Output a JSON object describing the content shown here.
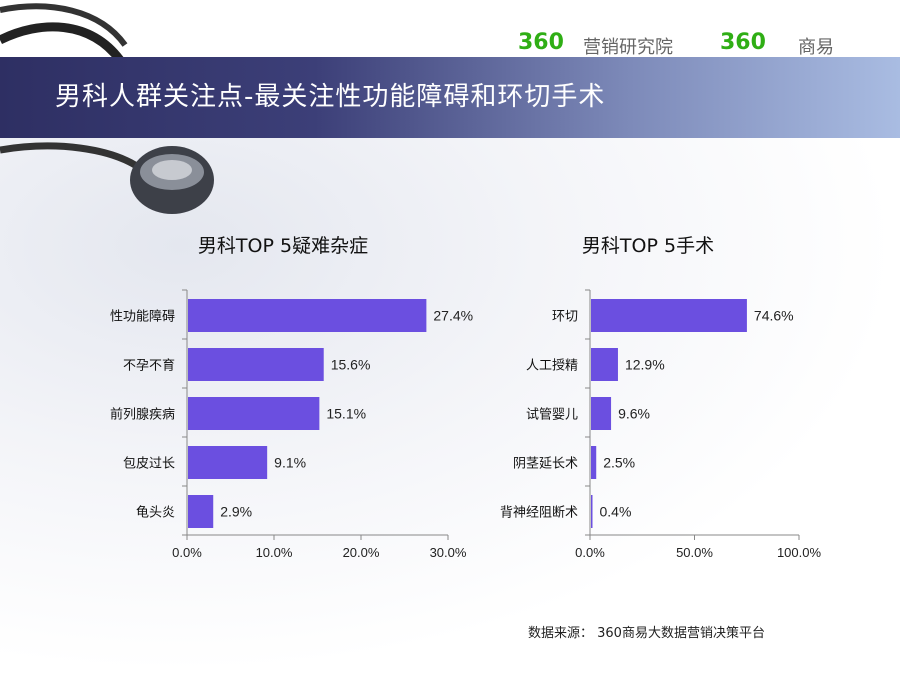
{
  "header": {
    "title": "男科人群关注点-最关注性功能障碍和环切手术",
    "logo1_num": "360",
    "logo1_text": "营销研究院",
    "logo2_num": "360",
    "logo2_text": "商易"
  },
  "footer": {
    "source": "数据来源： 360商易大数据营销决策平台"
  },
  "colors": {
    "bar": "#6b4fe0",
    "logo_green": "#2fae15",
    "band_dark": "#2e2f63",
    "band_light": "#a9bce2"
  },
  "chart_data": [
    {
      "type": "bar",
      "orientation": "horizontal",
      "title": "男科TOP 5疑难杂症",
      "categories": [
        "性功能障碍",
        "不孕不育",
        "前列腺疾病",
        "包皮过长",
        "龟头炎"
      ],
      "values": [
        27.4,
        15.6,
        15.1,
        9.1,
        2.9
      ],
      "labels": [
        "27.4%",
        "15.6%",
        "15.1%",
        "9.1%",
        "2.9%"
      ],
      "xlim": [
        0,
        30
      ],
      "xticks": [
        "0.0%",
        "10.0%",
        "20.0%",
        "30.0%"
      ],
      "grid": false
    },
    {
      "type": "bar",
      "orientation": "horizontal",
      "title": "男科TOP 5手术",
      "categories": [
        "环切",
        "人工授精",
        "试管婴儿",
        "阴茎延长术",
        "背神经阻断术"
      ],
      "values": [
        74.6,
        12.9,
        9.6,
        2.5,
        0.4
      ],
      "labels": [
        "74.6%",
        "12.9%",
        "9.6%",
        "2.5%",
        "0.4%"
      ],
      "xlim": [
        0,
        100
      ],
      "xticks": [
        "0.0%",
        "50.0%",
        "100.0%"
      ],
      "grid": false
    }
  ]
}
